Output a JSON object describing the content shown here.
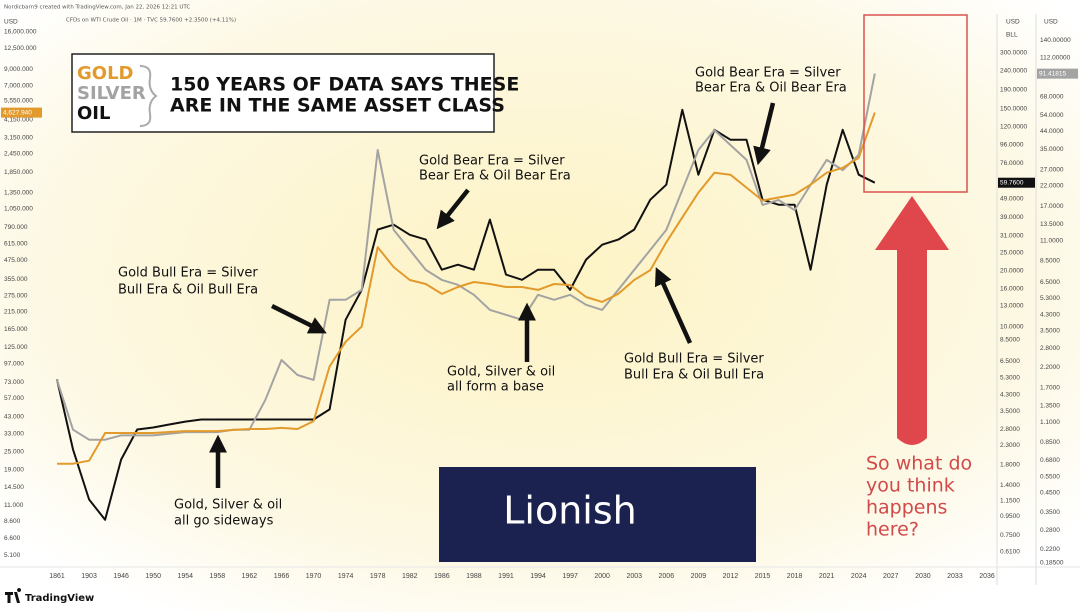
{
  "header": {
    "credit": "Nordicbarn9 created with TradingView.com, Jan 22, 2026 12:21 UTC",
    "symbol": "CFDs on WTI Crude Oil · 1M · TVC 59.7600 +2.3500 (+4.11%)"
  },
  "chart_data": {
    "type": "line",
    "title_lines": [
      "150 YEARS OF DATA SAYS THESE",
      "ARE IN THE SAME ASSET CLASS"
    ],
    "categories": [
      "1861",
      null,
      "1903",
      null,
      "1946",
      null,
      "1950",
      null,
      "1954",
      null,
      "1958",
      null,
      "1962",
      null,
      "1966",
      null,
      "1970",
      null,
      "1974",
      null,
      "1978",
      null,
      "1982",
      null,
      "1986",
      null,
      "1988",
      null,
      "1991",
      null,
      "1994",
      null,
      "1997",
      null,
      "2000",
      null,
      "2003",
      null,
      "2006",
      null,
      "2009",
      null,
      "2012",
      null,
      "2015",
      null,
      "2018",
      null,
      "2021",
      null,
      "2024",
      null,
      "2027",
      null,
      "2030",
      null,
      "2033",
      null,
      "2036"
    ],
    "series": [
      {
        "name": "GOLD",
        "color": "#e39a2c",
        "axis": "y",
        "last_label": "4,627.940",
        "values": [
          20.8,
          20.8,
          21.8,
          33.4,
          33.4,
          33.4,
          33.4,
          33.9,
          34.4,
          34.4,
          34.4,
          35.0,
          35.5,
          35.5,
          36.1,
          35.5,
          40.1,
          93,
          136,
          172,
          583,
          429,
          352,
          331,
          284,
          316,
          341,
          331,
          316,
          316,
          302,
          331,
          326,
          271,
          251,
          284,
          352,
          410,
          629,
          922,
          1351,
          1835,
          1779,
          1458,
          1196,
          1252,
          1310,
          1527,
          1835,
          1980,
          2308,
          4627.94,
          null,
          null,
          null,
          null,
          null,
          null,
          null
        ]
      },
      {
        "name": "SILVER",
        "color": "#a3a3a3",
        "axis": "y3",
        "last_label": "91.41815",
        "values": [
          1.88,
          1.0,
          0.88,
          0.88,
          0.93,
          0.93,
          0.93,
          0.95,
          0.97,
          0.97,
          0.97,
          1.0,
          1.0,
          1.46,
          2.42,
          2.0,
          1.88,
          5.19,
          5.19,
          5.89,
          34.7,
          12.6,
          9.77,
          7.59,
          6.68,
          6.28,
          5.53,
          4.57,
          4.29,
          4.03,
          5.53,
          5.19,
          5.53,
          4.87,
          4.57,
          5.89,
          7.59,
          9.77,
          12.6,
          20.9,
          34.7,
          44.7,
          37.0,
          30.6,
          17.3,
          18.4,
          16.2,
          22.3,
          30.6,
          26.9,
          32.6,
          91.41815,
          null,
          null,
          null,
          null,
          null,
          null,
          null
        ]
      },
      {
        "name": "OIL",
        "color": "#111111",
        "axis": "y2",
        "last_label": "59.7600",
        "values": [
          5.19,
          2.18,
          1.17,
          0.91,
          1.92,
          2.79,
          2.86,
          2.97,
          3.08,
          3.16,
          3.16,
          3.16,
          3.16,
          3.16,
          3.16,
          3.16,
          3.16,
          3.58,
          10.9,
          15.8,
          33.4,
          35.5,
          31.3,
          29.5,
          20.3,
          21.6,
          20.3,
          37.8,
          19.1,
          17.9,
          20.3,
          20.3,
          15.8,
          23.0,
          27.7,
          29.5,
          33.4,
          48.4,
          58.3,
          147.8,
          66.0,
          115.3,
          101.9,
          101.9,
          48.4,
          45.5,
          45.5,
          20.3,
          58.3,
          115.3,
          66.0,
          59.76,
          null,
          null,
          null,
          null,
          null,
          null,
          null
        ]
      }
    ],
    "log_scale": true,
    "grid": false,
    "ylim": [
      4.18,
      16500
    ],
    "y2lim": [
      0.5,
      398
    ],
    "y3lim": [
      0.173,
      159
    ],
    "axis_units": {
      "y": [
        "USD"
      ],
      "y2": [
        "USD",
        "BLL"
      ],
      "y3": [
        "USD"
      ]
    },
    "yticks": [
      {
        "value": 16000,
        "label": "16,000.000"
      },
      {
        "value": 12500,
        "label": "12,500.000"
      },
      {
        "value": 9000,
        "label": "9,000.000"
      },
      {
        "value": 7000,
        "label": "7,000.000"
      },
      {
        "value": 5550,
        "label": "5,550.000"
      },
      {
        "value": 4150,
        "label": "4,150.000"
      },
      {
        "value": 3150,
        "label": "3,150.000"
      },
      {
        "value": 2450,
        "label": "2,450.000"
      },
      {
        "value": 1850,
        "label": "1,850.000"
      },
      {
        "value": 1350,
        "label": "1,350.000"
      },
      {
        "value": 1050,
        "label": "1,050.000"
      },
      {
        "value": 790,
        "label": "790.000"
      },
      {
        "value": 615,
        "label": "615.000"
      },
      {
        "value": 475,
        "label": "475.000"
      },
      {
        "value": 355,
        "label": "355.000"
      },
      {
        "value": 275,
        "label": "275.000"
      },
      {
        "value": 215,
        "label": "215.000"
      },
      {
        "value": 165,
        "label": "165.000"
      },
      {
        "value": 125,
        "label": "125.000"
      },
      {
        "value": 97,
        "label": "97.000"
      },
      {
        "value": 73,
        "label": "73.000"
      },
      {
        "value": 57,
        "label": "57.000"
      },
      {
        "value": 43,
        "label": "43.000"
      },
      {
        "value": 33,
        "label": "33.000"
      },
      {
        "value": 25,
        "label": "25.000"
      },
      {
        "value": 19,
        "label": "19.000"
      },
      {
        "value": 14.5,
        "label": "14.500"
      },
      {
        "value": 11,
        "label": "11.000"
      },
      {
        "value": 8.6,
        "label": "8.600"
      },
      {
        "value": 6.6,
        "label": "6.600"
      },
      {
        "value": 5.1,
        "label": "5.100"
      }
    ],
    "y2ticks": [
      {
        "value": 300,
        "label": "300.0000"
      },
      {
        "value": 240,
        "label": "240.0000"
      },
      {
        "value": 190,
        "label": "190.0000"
      },
      {
        "value": 150,
        "label": "150.0000"
      },
      {
        "value": 120,
        "label": "120.0000"
      },
      {
        "value": 96,
        "label": "96.0000"
      },
      {
        "value": 76,
        "label": "76.0000"
      },
      {
        "value": 49,
        "label": "49.0000"
      },
      {
        "value": 39,
        "label": "39.0000"
      },
      {
        "value": 31,
        "label": "31.0000"
      },
      {
        "value": 25,
        "label": "25.0000"
      },
      {
        "value": 20,
        "label": "20.0000"
      },
      {
        "value": 16,
        "label": "16.0000"
      },
      {
        "value": 13,
        "label": "13.0000"
      },
      {
        "value": 10,
        "label": "10.0000"
      },
      {
        "value": 8.5,
        "label": "8.5000"
      },
      {
        "value": 6.5,
        "label": "6.5000"
      },
      {
        "value": 5.3,
        "label": "5.3000"
      },
      {
        "value": 4.3,
        "label": "4.3000"
      },
      {
        "value": 3.5,
        "label": "3.5000"
      },
      {
        "value": 2.8,
        "label": "2.8000"
      },
      {
        "value": 2.3,
        "label": "2.3000"
      },
      {
        "value": 1.8,
        "label": "1.8000"
      },
      {
        "value": 1.4,
        "label": "1.4000"
      },
      {
        "value": 1.15,
        "label": "1.1500"
      },
      {
        "value": 0.95,
        "label": "0.9500"
      },
      {
        "value": 0.75,
        "label": "0.7500"
      },
      {
        "value": 0.61,
        "label": "0.6100"
      }
    ],
    "y3ticks": [
      {
        "value": 140,
        "label": "140.00000"
      },
      {
        "value": 112,
        "label": "112.00000"
      },
      {
        "value": 68,
        "label": "68.0000"
      },
      {
        "value": 54,
        "label": "54.0000"
      },
      {
        "value": 44,
        "label": "44.0000"
      },
      {
        "value": 35,
        "label": "35.0000"
      },
      {
        "value": 27,
        "label": "27.0000"
      },
      {
        "value": 22,
        "label": "22.0000"
      },
      {
        "value": 17,
        "label": "17.0000"
      },
      {
        "value": 13.5,
        "label": "13.5000"
      },
      {
        "value": 11,
        "label": "11.0000"
      },
      {
        "value": 8.5,
        "label": "8.5000"
      },
      {
        "value": 6.5,
        "label": "6.5000"
      },
      {
        "value": 5.3,
        "label": "5.3000"
      },
      {
        "value": 4.3,
        "label": "4.3000"
      },
      {
        "value": 3.5,
        "label": "3.5000"
      },
      {
        "value": 2.8,
        "label": "2.8000"
      },
      {
        "value": 2.2,
        "label": "2.2000"
      },
      {
        "value": 1.7,
        "label": "1.7000"
      },
      {
        "value": 1.35,
        "label": "1.3500"
      },
      {
        "value": 1.1,
        "label": "1.1000"
      },
      {
        "value": 0.85,
        "label": "0.8500"
      },
      {
        "value": 0.68,
        "label": "0.6800"
      },
      {
        "value": 0.55,
        "label": "0.5500"
      },
      {
        "value": 0.45,
        "label": "0.4500"
      },
      {
        "value": 0.35,
        "label": "0.3500"
      },
      {
        "value": 0.28,
        "label": "0.2800"
      },
      {
        "value": 0.22,
        "label": "0.2200"
      },
      {
        "value": 0.185,
        "label": "0.18500"
      }
    ],
    "annotations": [
      {
        "lines": [
          "Gold Bear Era = Silver",
          "Bear Era & Oil Bear Era"
        ]
      },
      {
        "lines": [
          "Gold Bear Era = Silver",
          "Bear Era & Oil Bear Era"
        ]
      },
      {
        "lines": [
          "Gold Bull Era = Silver",
          "Bull Era & Oil Bull Era"
        ]
      },
      {
        "lines": [
          "Gold, Silver & oil",
          "all form a base"
        ]
      },
      {
        "lines": [
          "Gold Bull Era = Silver",
          "Bull Era & Oil Bull Era"
        ]
      },
      {
        "lines": [
          "Gold, Silver & oil",
          "all go sideways"
        ]
      }
    ],
    "callout": {
      "lines": [
        "So what do",
        "you think",
        "happens",
        "here?"
      ]
    }
  },
  "watermark": "Lionish",
  "footer": "TradingView"
}
